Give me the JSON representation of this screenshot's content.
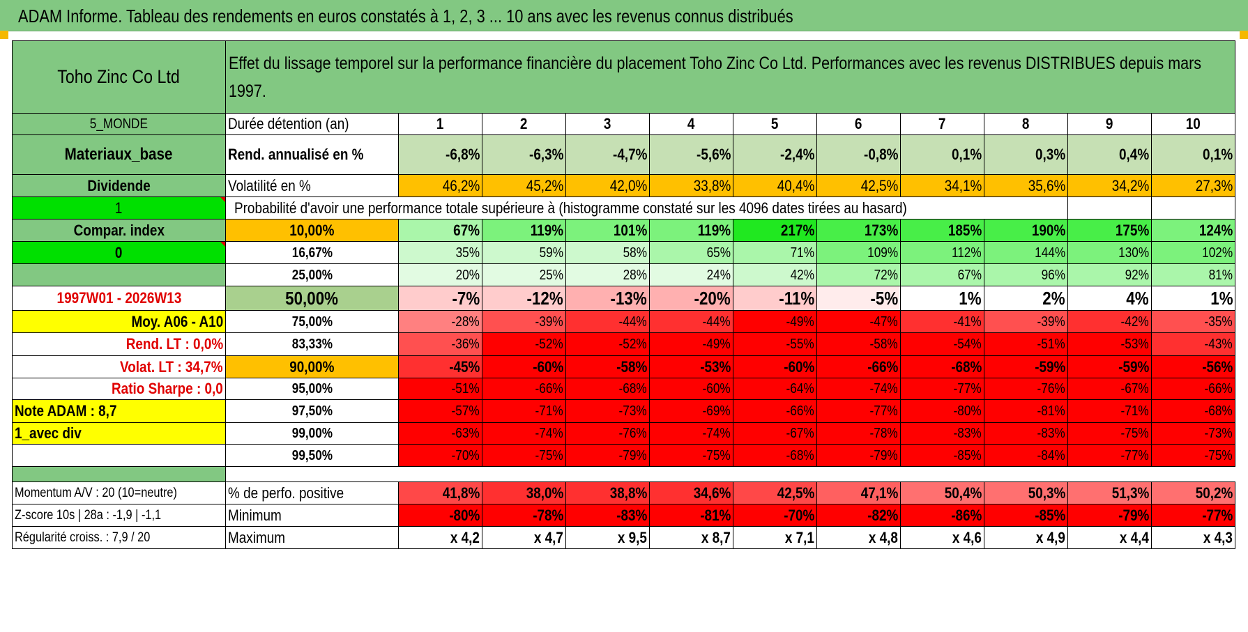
{
  "title": "ADAM Informe. Tableau des rendements en euros constatés à 1, 2, 3 ... 10 ans avec les revenus connus distribués",
  "header": {
    "company": "Toho Zinc Co Ltd",
    "description": "Effet du lissage temporel sur la performance financière du placement Toho Zinc Co Ltd. Performances avec les revenus DISTRIBUES depuis mars 1997."
  },
  "rows_top": {
    "zone": "5_MONDE",
    "duration_label": "Durée détention (an)",
    "years": [
      "1",
      "2",
      "3",
      "4",
      "5",
      "6",
      "7",
      "8",
      "9",
      "10"
    ],
    "sector": "Materiaux_base",
    "rend_label": "Rend. annualisé en %",
    "rend": [
      "-6,8%",
      "-6,3%",
      "-4,7%",
      "-5,6%",
      "-2,4%",
      "-0,8%",
      "0,1%",
      "0,3%",
      "0,4%",
      "0,1%"
    ],
    "dividende": "Dividende",
    "vol_label": "Volatilité en %",
    "vol": [
      "46,2%",
      "45,2%",
      "42,0%",
      "33,8%",
      "40,4%",
      "42,5%",
      "34,1%",
      "35,6%",
      "34,2%",
      "27,3%"
    ],
    "one": "1",
    "proba_label": "Probabilité d'avoir une performance totale supérieure à (histogramme constaté sur les 4096 dates tirées au hasard)"
  },
  "left_labels": [
    "Compar. index",
    "0",
    "",
    "1997W01 - 2026W13",
    "Moy. A06 - A10",
    "Rend. LT :    0,0%",
    "Volat. LT :   34,7%",
    "Ratio Sharpe :    0,0",
    "Note ADAM : 8,7",
    "1_avec div",
    ""
  ],
  "thresholds": [
    "10,00%",
    "16,67%",
    "25,00%",
    "50,00%",
    "75,00%",
    "83,33%",
    "90,00%",
    "95,00%",
    "97,50%",
    "99,00%",
    "99,50%"
  ],
  "matrix": [
    [
      "67%",
      "119%",
      "101%",
      "119%",
      "217%",
      "173%",
      "185%",
      "190%",
      "175%",
      "124%"
    ],
    [
      "35%",
      "59%",
      "58%",
      "65%",
      "71%",
      "109%",
      "112%",
      "144%",
      "130%",
      "102%"
    ],
    [
      "20%",
      "25%",
      "28%",
      "24%",
      "42%",
      "72%",
      "67%",
      "96%",
      "92%",
      "81%"
    ],
    [
      "-7%",
      "-12%",
      "-13%",
      "-20%",
      "-11%",
      "-5%",
      "1%",
      "2%",
      "4%",
      "1%"
    ],
    [
      "-28%",
      "-39%",
      "-44%",
      "-44%",
      "-49%",
      "-47%",
      "-41%",
      "-39%",
      "-42%",
      "-35%"
    ],
    [
      "-36%",
      "-52%",
      "-52%",
      "-49%",
      "-55%",
      "-58%",
      "-54%",
      "-51%",
      "-53%",
      "-43%"
    ],
    [
      "-45%",
      "-60%",
      "-58%",
      "-53%",
      "-60%",
      "-66%",
      "-68%",
      "-59%",
      "-59%",
      "-56%"
    ],
    [
      "-51%",
      "-66%",
      "-68%",
      "-60%",
      "-64%",
      "-74%",
      "-77%",
      "-76%",
      "-67%",
      "-66%"
    ],
    [
      "-57%",
      "-71%",
      "-73%",
      "-69%",
      "-66%",
      "-77%",
      "-80%",
      "-81%",
      "-71%",
      "-68%"
    ],
    [
      "-63%",
      "-74%",
      "-76%",
      "-74%",
      "-67%",
      "-78%",
      "-83%",
      "-83%",
      "-75%",
      "-73%"
    ],
    [
      "-70%",
      "-75%",
      "-79%",
      "-75%",
      "-68%",
      "-79%",
      "-85%",
      "-84%",
      "-77%",
      "-75%"
    ]
  ],
  "bottom": {
    "momentum": "Momentum A/V : 20 (10=neutre)",
    "pos_label": "% de perfo. positive",
    "pos": [
      "41,8%",
      "38,0%",
      "38,8%",
      "34,6%",
      "42,5%",
      "47,1%",
      "50,4%",
      "50,3%",
      "51,3%",
      "50,2%"
    ],
    "zscore": "Z-score 10s | 28a : -1,9 | -1,1",
    "min_label": "Minimum",
    "min": [
      "-80%",
      "-78%",
      "-83%",
      "-81%",
      "-70%",
      "-82%",
      "-86%",
      "-85%",
      "-79%",
      "-77%"
    ],
    "regularite": "Régularité croiss. : 7,9 / 20",
    "max_label": "Maximum",
    "max": [
      "x 4,2",
      "x 4,7",
      "x 9,5",
      "x 8,7",
      "x 7,1",
      "x 4,8",
      "x 4,6",
      "x 4,9",
      "x 4,4",
      "x 4,3"
    ]
  },
  "colors": {
    "header_green": "#82c882",
    "orange": "#ffc000",
    "yellow": "#ffff00",
    "bright_green": "#00e000",
    "red": "#ff0000",
    "label_red": "#e00000"
  }
}
